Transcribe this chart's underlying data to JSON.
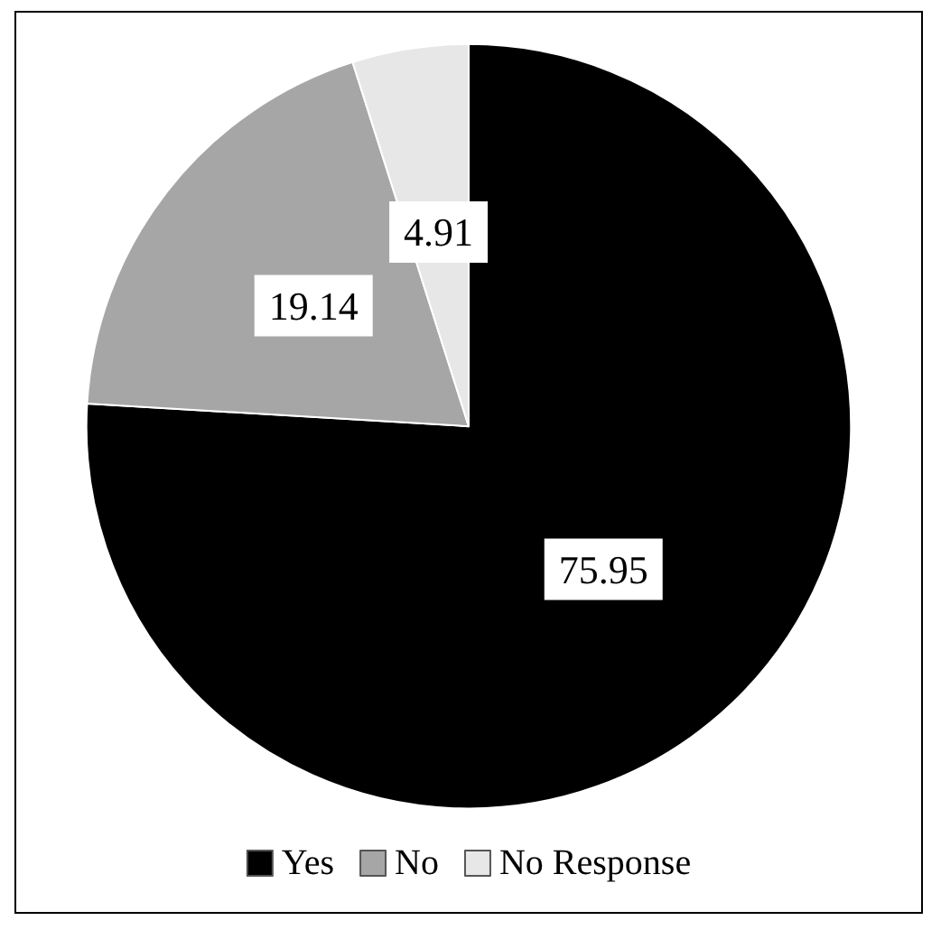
{
  "chart_data": {
    "type": "pie",
    "categories": [
      "Yes",
      "No",
      "No Response"
    ],
    "values": [
      75.95,
      19.14,
      4.91
    ],
    "colors": [
      "#000000",
      "#a6a6a6",
      "#e7e7e7"
    ],
    "data_labels": true,
    "legend": "bottom"
  }
}
